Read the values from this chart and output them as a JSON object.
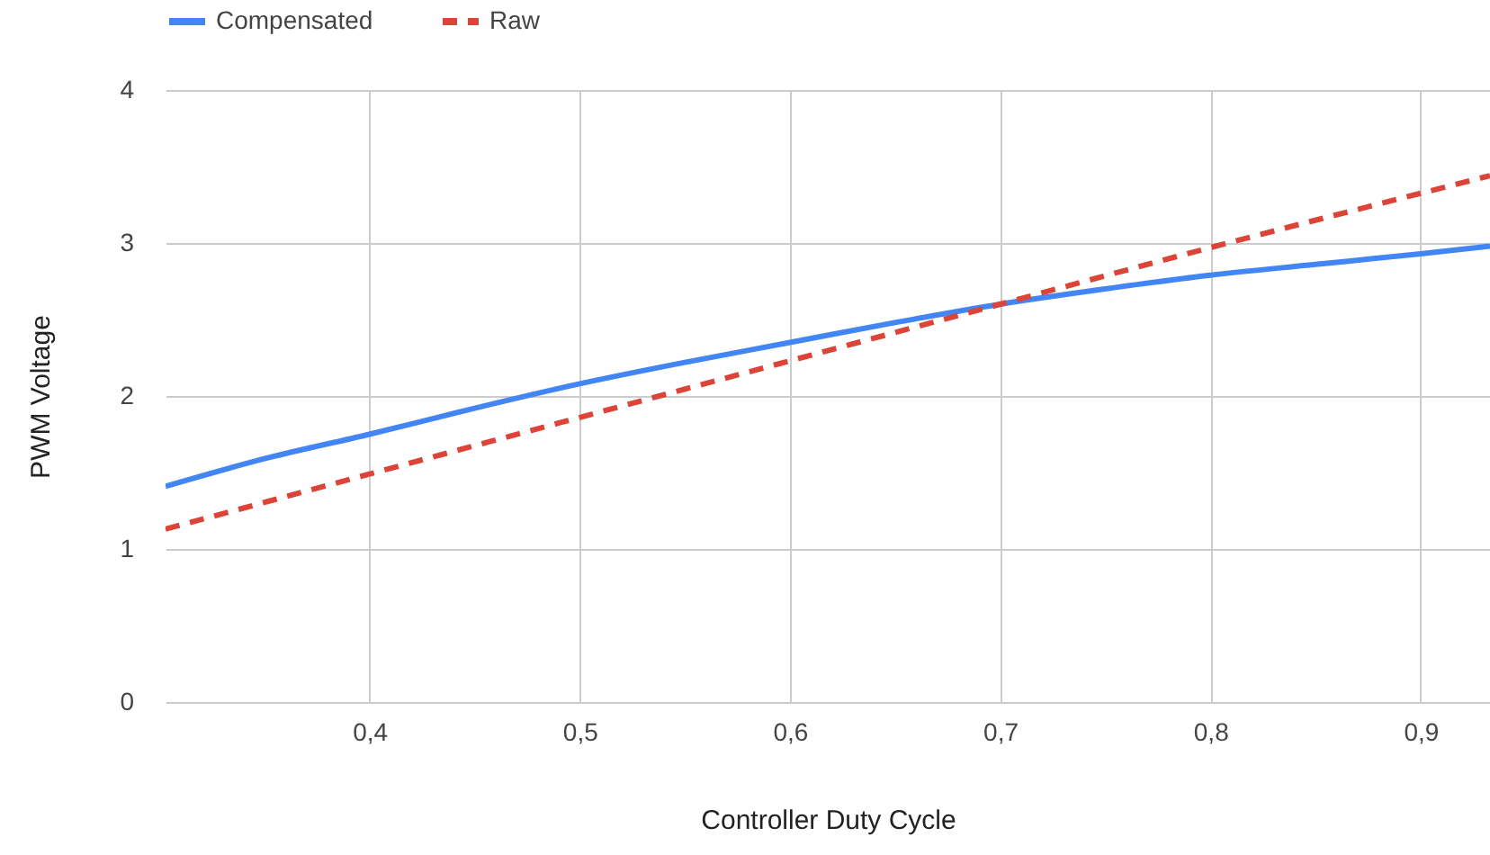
{
  "chart_data": {
    "type": "line",
    "xlabel": "Controller Duty Cycle",
    "ylabel": "PWM Voltage",
    "xlim": [
      0.303,
      0.933
    ],
    "ylim": [
      0,
      4
    ],
    "xticks": [
      {
        "value": 0.4,
        "label": "0,4"
      },
      {
        "value": 0.5,
        "label": "0,5"
      },
      {
        "value": 0.6,
        "label": "0,6"
      },
      {
        "value": 0.7,
        "label": "0,7"
      },
      {
        "value": 0.8,
        "label": "0,8"
      },
      {
        "value": 0.9,
        "label": "0,9"
      }
    ],
    "yticks": [
      0,
      1,
      2,
      3,
      4
    ],
    "grid": true,
    "legend": "top",
    "series": [
      {
        "name": "Compensated",
        "color": "#4285f4",
        "line_style": "solid",
        "x": [
          0.303,
          0.35,
          0.4,
          0.45,
          0.5,
          0.55,
          0.6,
          0.65,
          0.7,
          0.75,
          0.8,
          0.85,
          0.9,
          0.933
        ],
        "values": [
          1.41,
          1.59,
          1.75,
          1.92,
          2.08,
          2.22,
          2.35,
          2.48,
          2.6,
          2.7,
          2.79,
          2.86,
          2.93,
          2.98
        ]
      },
      {
        "name": "Raw",
        "color": "#db4437",
        "line_style": "dashed",
        "x": [
          0.303,
          0.4,
          0.5,
          0.6,
          0.7,
          0.8,
          0.933
        ],
        "values": [
          1.13,
          1.49,
          1.86,
          2.23,
          2.6,
          2.97,
          3.44
        ]
      }
    ]
  }
}
